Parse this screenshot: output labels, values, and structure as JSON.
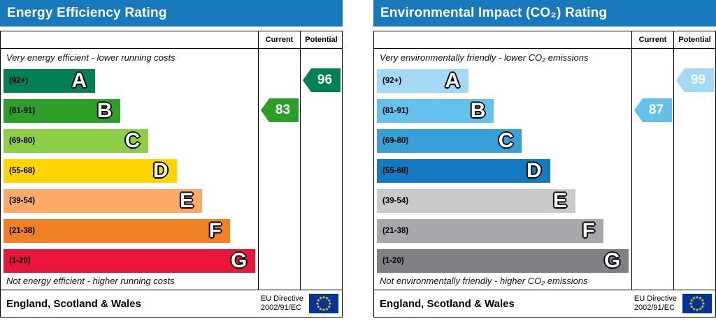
{
  "flag": {
    "background": "#003399",
    "star_color": "#ffcc00",
    "stars": 12
  },
  "chart_data": [
    {
      "type": "bar",
      "title": "Energy Efficiency Rating",
      "columns": {
        "current": "Current",
        "potential": "Potential"
      },
      "top_caption": "Very energy efficient - lower running costs",
      "bottom_caption": "Not energy efficient - higher running costs",
      "bands": [
        {
          "letter": "A",
          "range": "(92+)",
          "color": "#008054",
          "width_pct": 36
        },
        {
          "letter": "B",
          "range": "(81-91)",
          "color": "#2c9f29",
          "width_pct": 46
        },
        {
          "letter": "C",
          "range": "(69-80)",
          "color": "#8dce46",
          "width_pct": 57
        },
        {
          "letter": "D",
          "range": "(55-68)",
          "color": "#ffd500",
          "width_pct": 68
        },
        {
          "letter": "E",
          "range": "(39-54)",
          "color": "#fcaa65",
          "width_pct": 78
        },
        {
          "letter": "F",
          "range": "(21-38)",
          "color": "#ef8023",
          "width_pct": 89
        },
        {
          "letter": "G",
          "range": "(1-20)",
          "color": "#e9153b",
          "width_pct": 99
        }
      ],
      "current": {
        "value": 83,
        "band": "B",
        "color": "#2c9f29"
      },
      "potential": {
        "value": 96,
        "band": "A",
        "color": "#008054"
      },
      "footer": {
        "region": "England, Scotland & Wales",
        "directive_line1": "EU Directive",
        "directive_line2": "2002/91/EC"
      }
    },
    {
      "type": "bar",
      "title": "Environmental Impact (CO₂) Rating",
      "columns": {
        "current": "Current",
        "potential": "Potential"
      },
      "top_caption": "Very environmentally friendly - lower CO₂ emissions",
      "bottom_caption": "Not environmentally friendly - higher CO₂ emissions",
      "bands": [
        {
          "letter": "A",
          "range": "(92+)",
          "color": "#a3d9f5",
          "width_pct": 36
        },
        {
          "letter": "B",
          "range": "(81-91)",
          "color": "#64c1ec",
          "width_pct": 46
        },
        {
          "letter": "C",
          "range": "(69-80)",
          "color": "#37a0d6",
          "width_pct": 57
        },
        {
          "letter": "D",
          "range": "(55-68)",
          "color": "#1579bf",
          "width_pct": 68
        },
        {
          "letter": "E",
          "range": "(39-54)",
          "color": "#c8cacc",
          "width_pct": 78
        },
        {
          "letter": "F",
          "range": "(21-38)",
          "color": "#a6a8ab",
          "width_pct": 89
        },
        {
          "letter": "G",
          "range": "(1-20)",
          "color": "#7e8083",
          "width_pct": 99
        }
      ],
      "current": {
        "value": 87,
        "band": "B",
        "color": "#64c1ec"
      },
      "potential": {
        "value": 99,
        "band": "A",
        "color": "#a3d9f5"
      },
      "footer": {
        "region": "England, Scotland & Wales",
        "directive_line1": "EU Directive",
        "directive_line2": "2002/91/EC"
      }
    }
  ]
}
